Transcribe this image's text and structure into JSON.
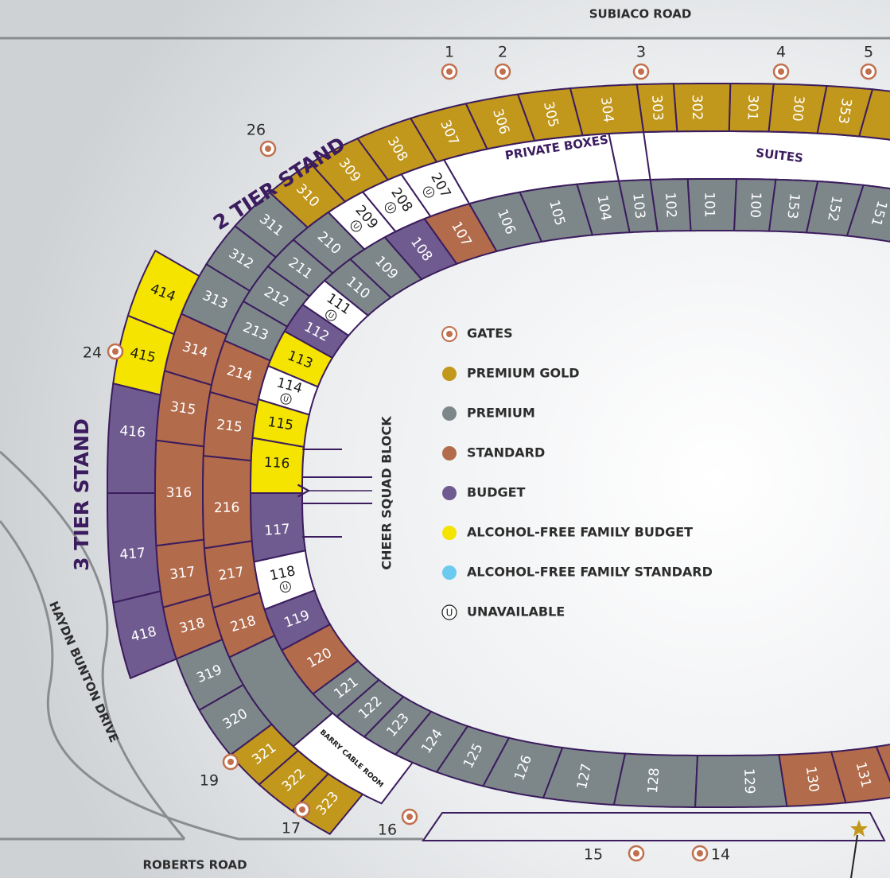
{
  "roads": {
    "north": "SUBIACO ROAD",
    "south": "ROBERTS ROAD",
    "west": "HAYDN BUNTON DRIVE"
  },
  "stands": [
    "2 TIER STAND",
    "3 TIER STAND"
  ],
  "areas": {
    "private_boxes": "PRIVATE BOXES",
    "suites": "SUITES",
    "barry_cable_room": "BARRY CABLE ROOM"
  },
  "cheer_squad": "CHEER SQUAD BLOCK",
  "unavailable_symbol": "U",
  "legend": [
    {
      "label": "GATES",
      "color": "#c0704e"
    },
    {
      "label": "PREMIUM GOLD",
      "color": "#c1971c"
    },
    {
      "label": "PREMIUM",
      "color": "#7d878a"
    },
    {
      "label": "STANDARD",
      "color": "#b26b4b"
    },
    {
      "label": "BUDGET",
      "color": "#6f5b8f"
    },
    {
      "label": "ALCOHOL-FREE FAMILY BUDGET",
      "color": "#f4e400"
    },
    {
      "label": "ALCOHOL-FREE FAMILY STANDARD",
      "color": "#6ccaf0"
    },
    {
      "label": "UNAVAILABLE",
      "color": "#ffffff"
    }
  ],
  "gates": [
    "1",
    "2",
    "3",
    "4",
    "5",
    "26",
    "24",
    "19",
    "17",
    "16",
    "15",
    "14"
  ],
  "sections": [
    {
      "label": "151",
      "category": 2
    },
    {
      "label": "152",
      "category": 2
    },
    {
      "label": "153",
      "category": 2
    },
    {
      "label": "100",
      "category": 2
    },
    {
      "label": "101",
      "category": 2
    },
    {
      "label": "102",
      "category": 2
    },
    {
      "label": "103",
      "category": 2
    },
    {
      "label": "104",
      "category": 2
    },
    {
      "label": "105",
      "category": 2
    },
    {
      "label": "106",
      "category": 2
    },
    {
      "label": "107",
      "category": 3
    },
    {
      "label": "108",
      "category": 4
    },
    {
      "label": "109",
      "category": 2
    },
    {
      "label": "110",
      "category": 2
    },
    {
      "label": "111",
      "category": 7
    },
    {
      "label": "112",
      "category": 4
    },
    {
      "label": "113",
      "category": 5
    },
    {
      "label": "114",
      "category": 7
    },
    {
      "label": "115",
      "category": 5
    },
    {
      "label": "116",
      "category": 5
    },
    {
      "label": "117",
      "category": 4
    },
    {
      "label": "118",
      "category": 7
    },
    {
      "label": "119",
      "category": 4
    },
    {
      "label": "120",
      "category": 3
    },
    {
      "label": "121",
      "category": 2
    },
    {
      "label": "122",
      "category": 2
    },
    {
      "label": "123",
      "category": 2
    },
    {
      "label": "124",
      "category": 2
    },
    {
      "label": "125",
      "category": 2
    },
    {
      "label": "126",
      "category": 2
    },
    {
      "label": "127",
      "category": 2
    },
    {
      "label": "128",
      "category": 2
    },
    {
      "label": "129",
      "category": 2
    },
    {
      "label": "130",
      "category": 3
    },
    {
      "label": "131",
      "category": 3
    },
    {
      "label": "207",
      "category": 7
    },
    {
      "label": "208",
      "category": 7
    },
    {
      "label": "209",
      "category": 7
    },
    {
      "label": "210",
      "category": 2
    },
    {
      "label": "211",
      "category": 2
    },
    {
      "label": "212",
      "category": 2
    },
    {
      "label": "213",
      "category": 2
    },
    {
      "label": "214",
      "category": 3
    },
    {
      "label": "215",
      "category": 3
    },
    {
      "label": "216",
      "category": 3
    },
    {
      "label": "217",
      "category": 3
    },
    {
      "label": "218",
      "category": 3
    },
    {
      "label": "353",
      "category": 1
    },
    {
      "label": "300",
      "category": 1
    },
    {
      "label": "301",
      "category": 1
    },
    {
      "label": "302",
      "category": 1
    },
    {
      "label": "303",
      "category": 1
    },
    {
      "label": "304",
      "category": 1
    },
    {
      "label": "305",
      "category": 1
    },
    {
      "label": "306",
      "category": 1
    },
    {
      "label": "307",
      "category": 1
    },
    {
      "label": "308",
      "category": 1
    },
    {
      "label": "309",
      "category": 1
    },
    {
      "label": "310",
      "category": 1
    },
    {
      "label": "311",
      "category": 2
    },
    {
      "label": "312",
      "category": 2
    },
    {
      "label": "313",
      "category": 2
    },
    {
      "label": "314",
      "category": 3
    },
    {
      "label": "315",
      "category": 3
    },
    {
      "label": "316",
      "category": 3
    },
    {
      "label": "317",
      "category": 3
    },
    {
      "label": "318",
      "category": 3
    },
    {
      "label": "319",
      "category": 2
    },
    {
      "label": "320",
      "category": 2
    },
    {
      "label": "321",
      "category": 1
    },
    {
      "label": "322",
      "category": 1
    },
    {
      "label": "323",
      "category": 1
    },
    {
      "label": "414",
      "category": 5
    },
    {
      "label": "415",
      "category": 5
    },
    {
      "label": "416",
      "category": 4
    },
    {
      "label": "417",
      "category": 4
    },
    {
      "label": "418",
      "category": 4
    }
  ]
}
